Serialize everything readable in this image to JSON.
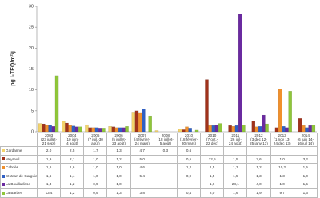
{
  "chart_data": {
    "type": "bar",
    "y_label": "pg I-TEQ/m²/j",
    "categories": [
      "2003\n(23 juillet-\n21 sept)",
      "2004\n(10 juin-\n4 août)",
      "2005\n(7 juil.-30\naoût)",
      "2006\n(5 juillet-\n23 août)",
      "2007\n(4 février-\n24 mars)",
      "2008\n(18 juillet-\n5 août)",
      "2010\n(18 février-\n30 mars)",
      "2010\n(7 oct.-\n22 déc)",
      "2011\n(26 juil-\n24 août)",
      "2012\n(3 déc 12-\n25 janv 13)",
      "2013\n(1 nov 13-\n24 déc 13)",
      "2014\n(6 juin 14-\n16 juil 14)"
    ],
    "series": [
      {
        "name": "Gardanne",
        "color": "#f3d36b",
        "values": [
          2.0,
          2.5,
          1.7,
          1.3,
          4.7,
          0.3,
          0.6,
          null,
          null,
          null,
          null,
          null
        ],
        "value_labels": [
          "2,0",
          "2,5",
          "1,7",
          "1,3",
          "4,7",
          "0,3",
          "0,6",
          null,
          null,
          null,
          null,
          null
        ]
      },
      {
        "name": "Meyreuil",
        "color": "#a0321c",
        "values": [
          1.9,
          2.1,
          1.0,
          1.2,
          5.0,
          null,
          0.5,
          12.5,
          1.5,
          2.6,
          1.0,
          3.2
        ],
        "value_labels": [
          "1,9",
          "2,1",
          "1,0",
          "1,2",
          "5,0",
          null,
          "0,5",
          "12,5",
          "1,5",
          "2,6",
          "1,0",
          "3,2"
        ]
      },
      {
        "name": "Cabriès",
        "color": "#f0902c",
        "values": [
          1.6,
          1.6,
          1.0,
          1.0,
          4.6,
          null,
          1.2,
          1.5,
          1.3,
          1.2,
          10.2,
          1.5
        ],
        "value_labels": [
          "1,6",
          "1,6",
          "1,0",
          "1,0",
          "4,6",
          null,
          "1,2",
          "1,5",
          "1,3",
          "1,2",
          "10,2",
          "1,5"
        ]
      },
      {
        "name": "St Jean de Garguier",
        "color": "#2f5fc4",
        "values": [
          1.6,
          1.4,
          1.0,
          1.0,
          5.4,
          null,
          0.9,
          1.5,
          1.5,
          1.3,
          1.3,
          1.0
        ],
        "value_labels": [
          "1,6",
          "1,4",
          "1,0",
          "1,0",
          "5,4",
          null,
          "0,9",
          "1,5",
          "1,5",
          "1,3",
          "1,3",
          "1,0"
        ]
      },
      {
        "name": "La Bouilladisse",
        "color": "#6a2aa0",
        "values": [
          1.3,
          1.2,
          0.9,
          1.0,
          null,
          null,
          null,
          1.6,
          28.1,
          4.0,
          1.0,
          1.5
        ],
        "value_labels": [
          "1,3",
          "1,2",
          "0,9",
          "1,0",
          null,
          null,
          null,
          "1,6",
          "28,1",
          "4,0",
          "1,0",
          "1,5"
        ]
      },
      {
        "name": "La Barben",
        "color": "#8fc63a",
        "values": [
          13.4,
          1.2,
          0.9,
          1.3,
          3.8,
          null,
          0.4,
          2.0,
          1.6,
          1.9,
          9.7,
          1.6
        ],
        "value_labels": [
          "13,4",
          "1,2",
          "0,9",
          "1,3",
          "3,8",
          null,
          "0,4",
          "2,0",
          "1,6",
          "1,9",
          "9,7",
          "1,6"
        ]
      }
    ],
    "ylim": [
      0,
      30
    ],
    "yticks": [
      0,
      5,
      10,
      15,
      20,
      25,
      30
    ],
    "grid": false
  }
}
